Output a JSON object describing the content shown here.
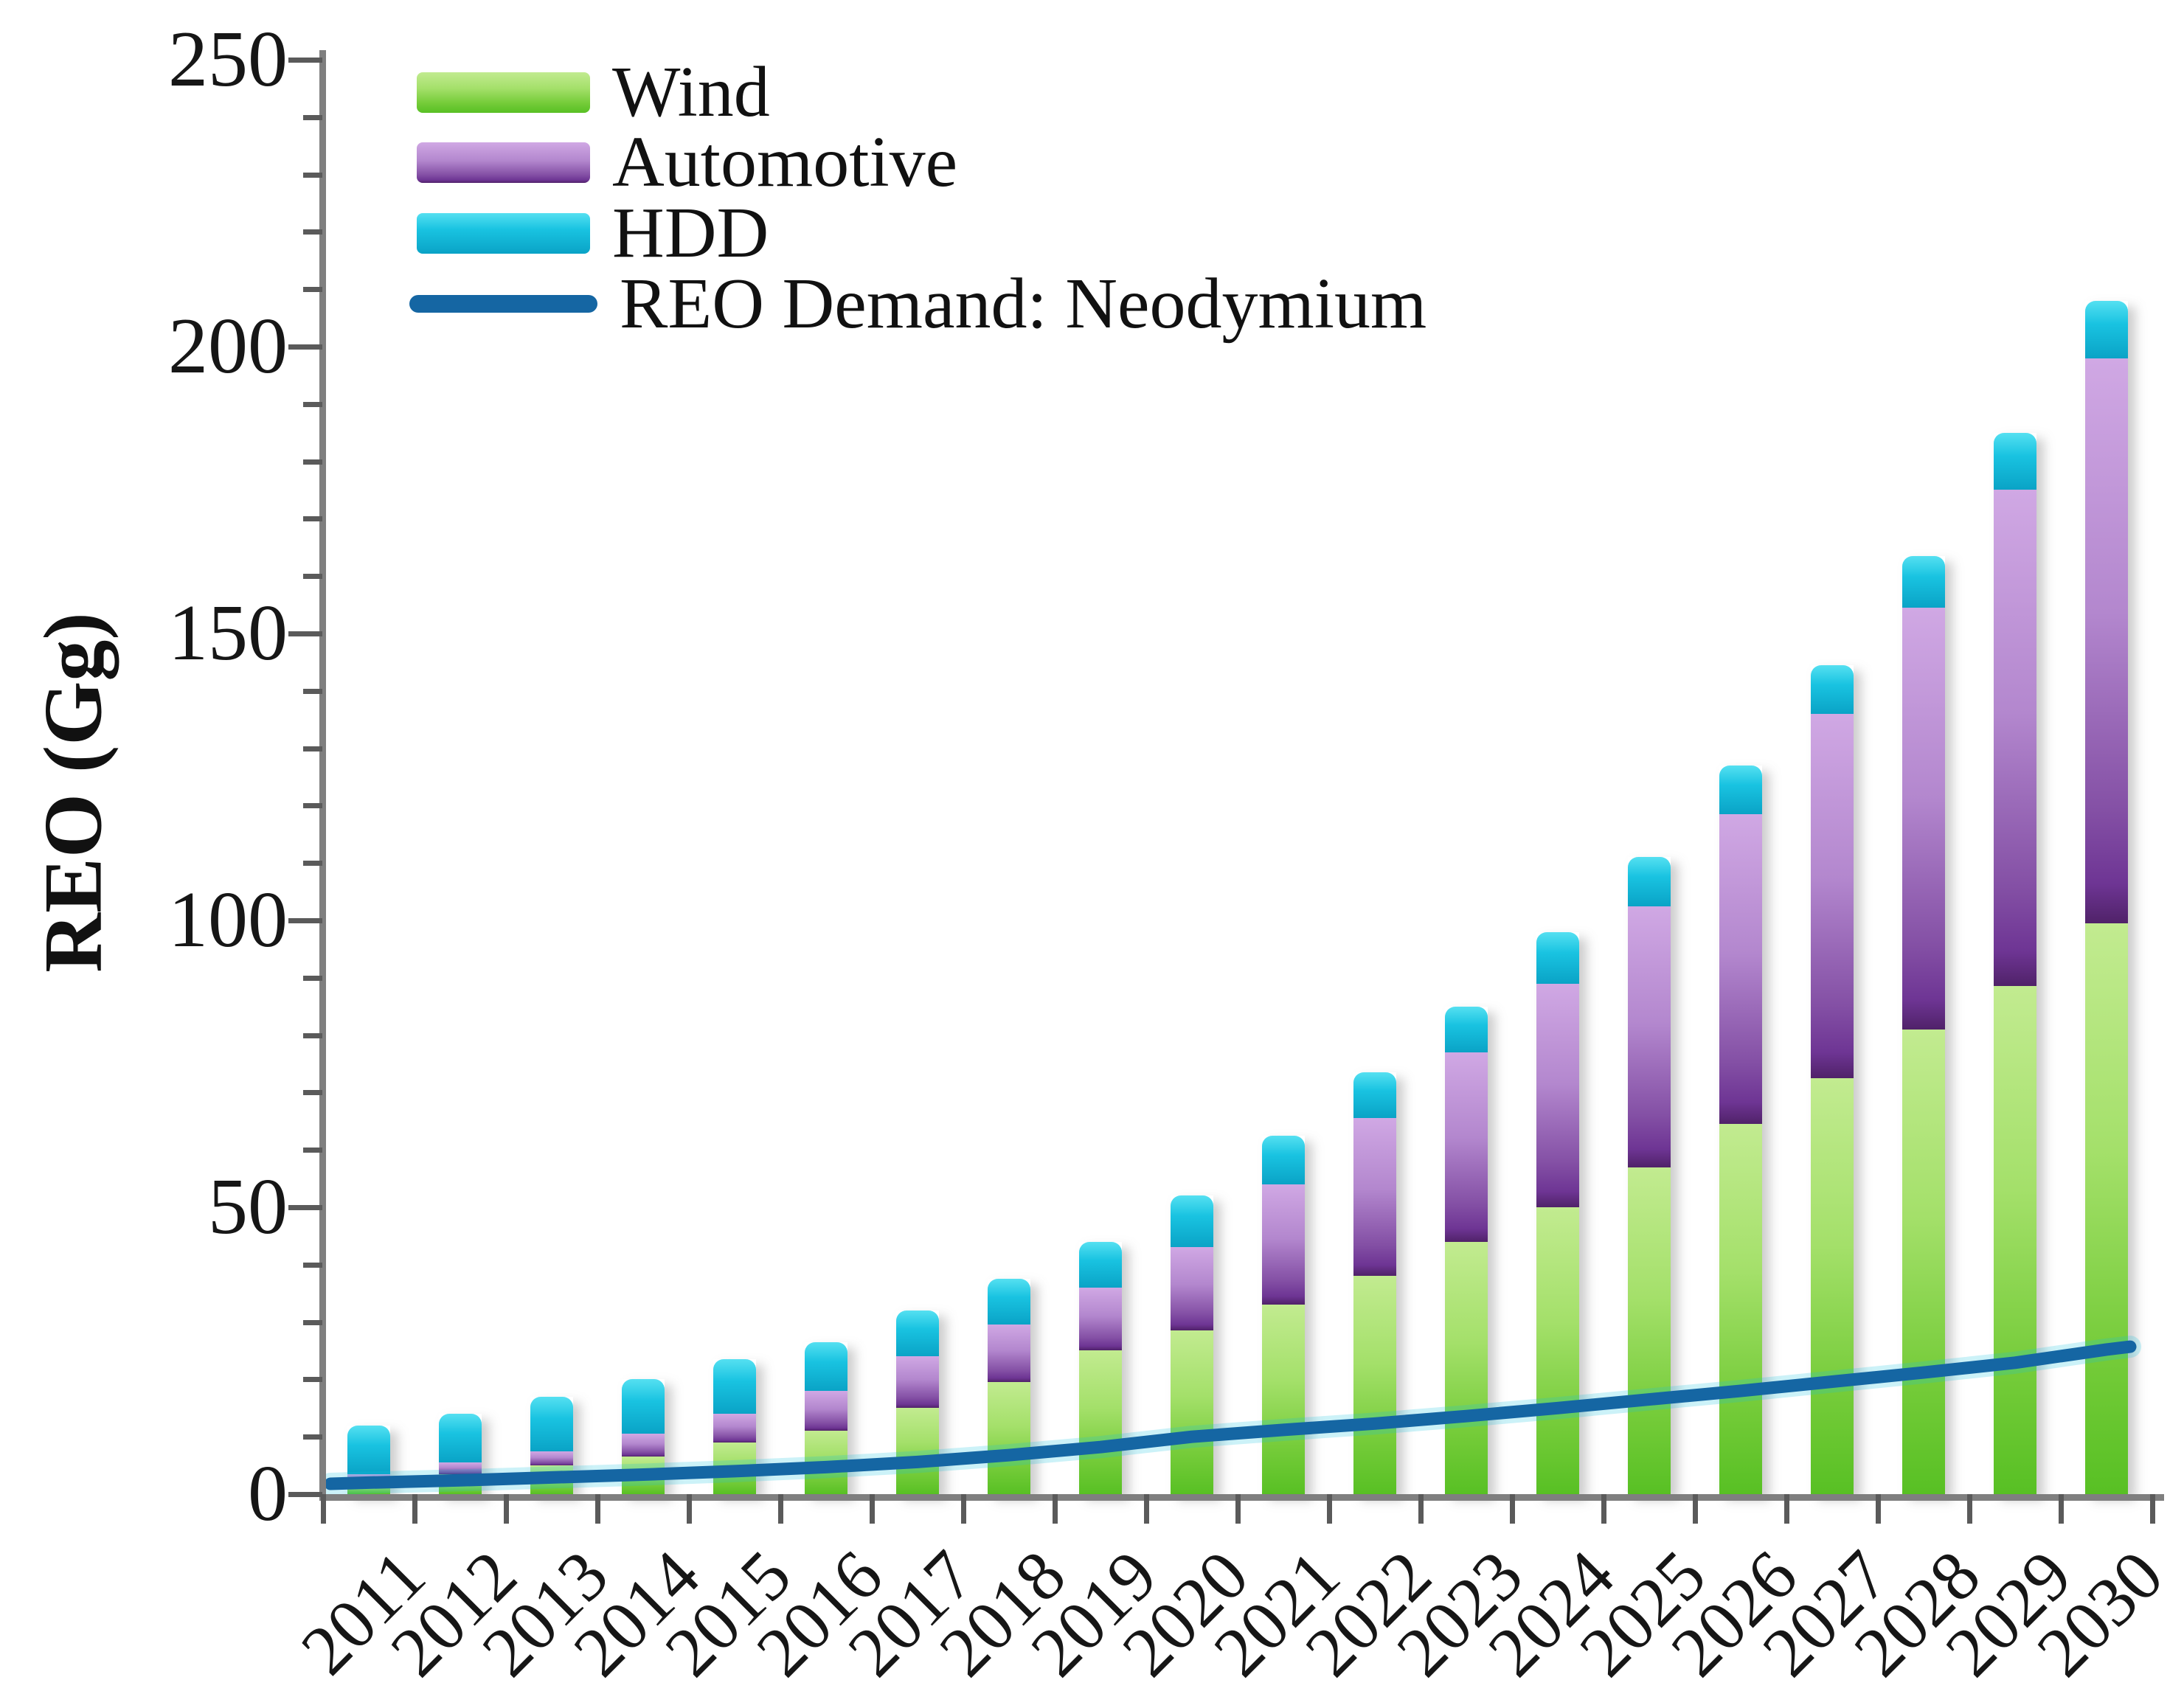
{
  "chart_data": {
    "type": "bar",
    "subtype": "stacked-bar-with-line",
    "title": "",
    "xlabel": "",
    "ylabel": "REO (Gg)",
    "ylim": [
      0,
      250
    ],
    "ytick_interval": 50,
    "yminor_tick_interval": 10,
    "ytick_labels": [
      "0",
      "50",
      "100",
      "150",
      "200",
      "250"
    ],
    "grid": false,
    "legend_position": "top-left",
    "categories": [
      "2011",
      "2012",
      "2013",
      "2014",
      "2015",
      "2016",
      "2017",
      "2018",
      "2019",
      "2020",
      "2021",
      "2022",
      "2023",
      "2024",
      "2025",
      "2026",
      "2027",
      "2028",
      "2029",
      "2030"
    ],
    "series": [
      {
        "name": "Wind",
        "type": "bar",
        "color": "#8ed655",
        "color_gradient_top": "#c2eb90",
        "color_gradient_bottom": "#58c024",
        "values": [
          2,
          3.5,
          5,
          6.5,
          9,
          11,
          15,
          19.5,
          25,
          28.5,
          33,
          38,
          44,
          50,
          57,
          64.5,
          72.5,
          81,
          88.5,
          99.5
        ]
      },
      {
        "name": "Automotive",
        "type": "bar",
        "color": "#b084cc",
        "color_gradient_top": "#d0a8e4",
        "color_gradient_bottom": "#6e3594",
        "values": [
          1.5,
          2,
          2.5,
          4,
          5,
          7,
          9,
          10,
          11,
          14.5,
          21,
          27.5,
          33,
          39,
          45.5,
          54,
          63.5,
          73.5,
          86.5,
          98.5
        ]
      },
      {
        "name": "HDD",
        "type": "bar",
        "color": "#19c3e1",
        "color_gradient_top": "#55e0f1",
        "color_gradient_bottom": "#0aa3c6",
        "values": [
          8.5,
          8.5,
          9.5,
          9.5,
          9.5,
          8.5,
          8,
          8,
          8,
          9,
          8.5,
          8,
          8,
          9,
          8.5,
          8.5,
          8.5,
          9,
          10,
          10
        ]
      },
      {
        "name": "REO Demand: Neodymium",
        "type": "line",
        "color": "#1566a3",
        "values": [
          2,
          2.4,
          2.9,
          3.4,
          4,
          4.7,
          5.6,
          6.8,
          8.2,
          10,
          11.2,
          12.3,
          13.6,
          15,
          16.5,
          18,
          19.6,
          21.2,
          22.9,
          25.2
        ]
      }
    ],
    "stacked_totals": [
      12,
      14,
      17,
      20,
      23.5,
      26.5,
      32,
      37.5,
      44,
      52,
      62.5,
      73.5,
      85,
      98,
      111,
      127,
      144.5,
      163.5,
      185,
      208
    ]
  },
  "legend": {
    "items": [
      {
        "label": "Wind"
      },
      {
        "label": "Automotive"
      },
      {
        "label": "HDD"
      },
      {
        "label": "REO Demand: Neodymium"
      }
    ]
  },
  "colors": {
    "axis": "#7f7f7f",
    "tick": "#5a5a5a",
    "text": "#161616",
    "line_series": "#1566a3",
    "line_halo": "rgba(23,194,224,0.22)"
  }
}
